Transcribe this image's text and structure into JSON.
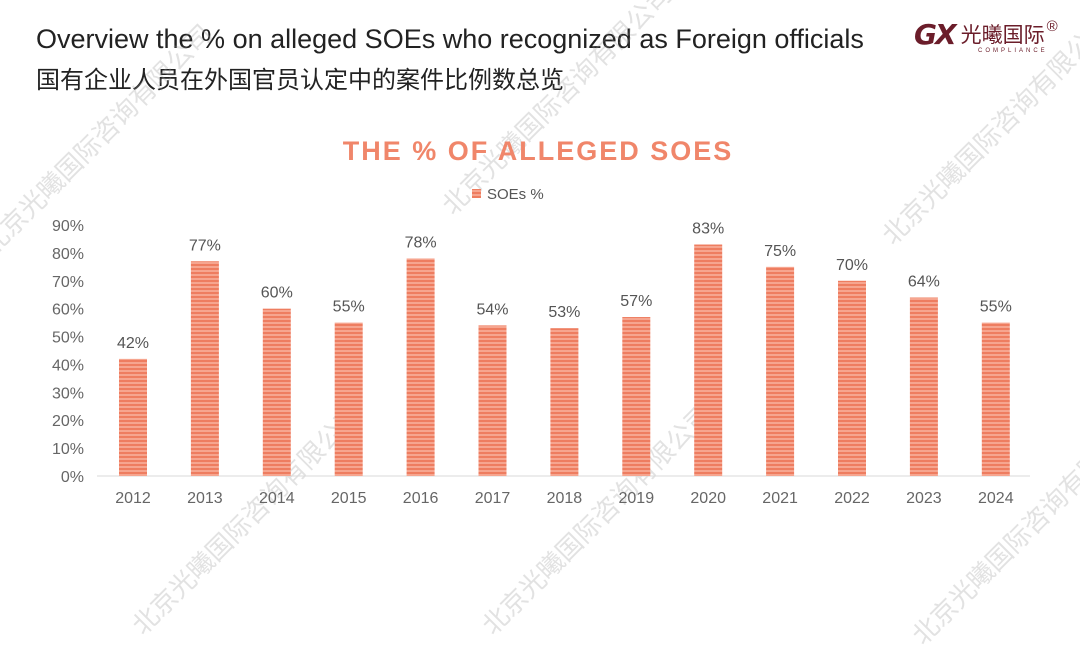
{
  "header": {
    "title_en": "Overview the % on alleged SOEs who recognized as Foreign officials",
    "title_zh": "国有企业人员在外国官员认定中的案件比例数总览"
  },
  "logo": {
    "mark": "GX",
    "name_zh": "光曦国际",
    "sub": "COMPLIANCE",
    "registered": "®",
    "color": "#6b1d2a"
  },
  "watermark": "北京光曦国际咨询有限公司",
  "chart_data": {
    "type": "bar",
    "title": "THE % OF ALLEGED SOES",
    "legend": "top",
    "categories": [
      "2012",
      "2013",
      "2014",
      "2015",
      "2016",
      "2017",
      "2018",
      "2019",
      "2020",
      "2021",
      "2022",
      "2023",
      "2024"
    ],
    "series": [
      {
        "name": "SOEs %",
        "values": [
          42,
          77,
          60,
          55,
          78,
          54,
          53,
          57,
          83,
          75,
          70,
          64,
          55
        ],
        "color": "#f0866a"
      }
    ],
    "data_labels": [
      "42%",
      "77%",
      "60%",
      "55%",
      "78%",
      "54%",
      "53%",
      "57%",
      "83%",
      "75%",
      "70%",
      "64%",
      "55%"
    ],
    "ylim": [
      0,
      90
    ],
    "yticks": [
      "0%",
      "10%",
      "20%",
      "30%",
      "40%",
      "50%",
      "60%",
      "70%",
      "80%",
      "90%"
    ],
    "grid": false
  }
}
